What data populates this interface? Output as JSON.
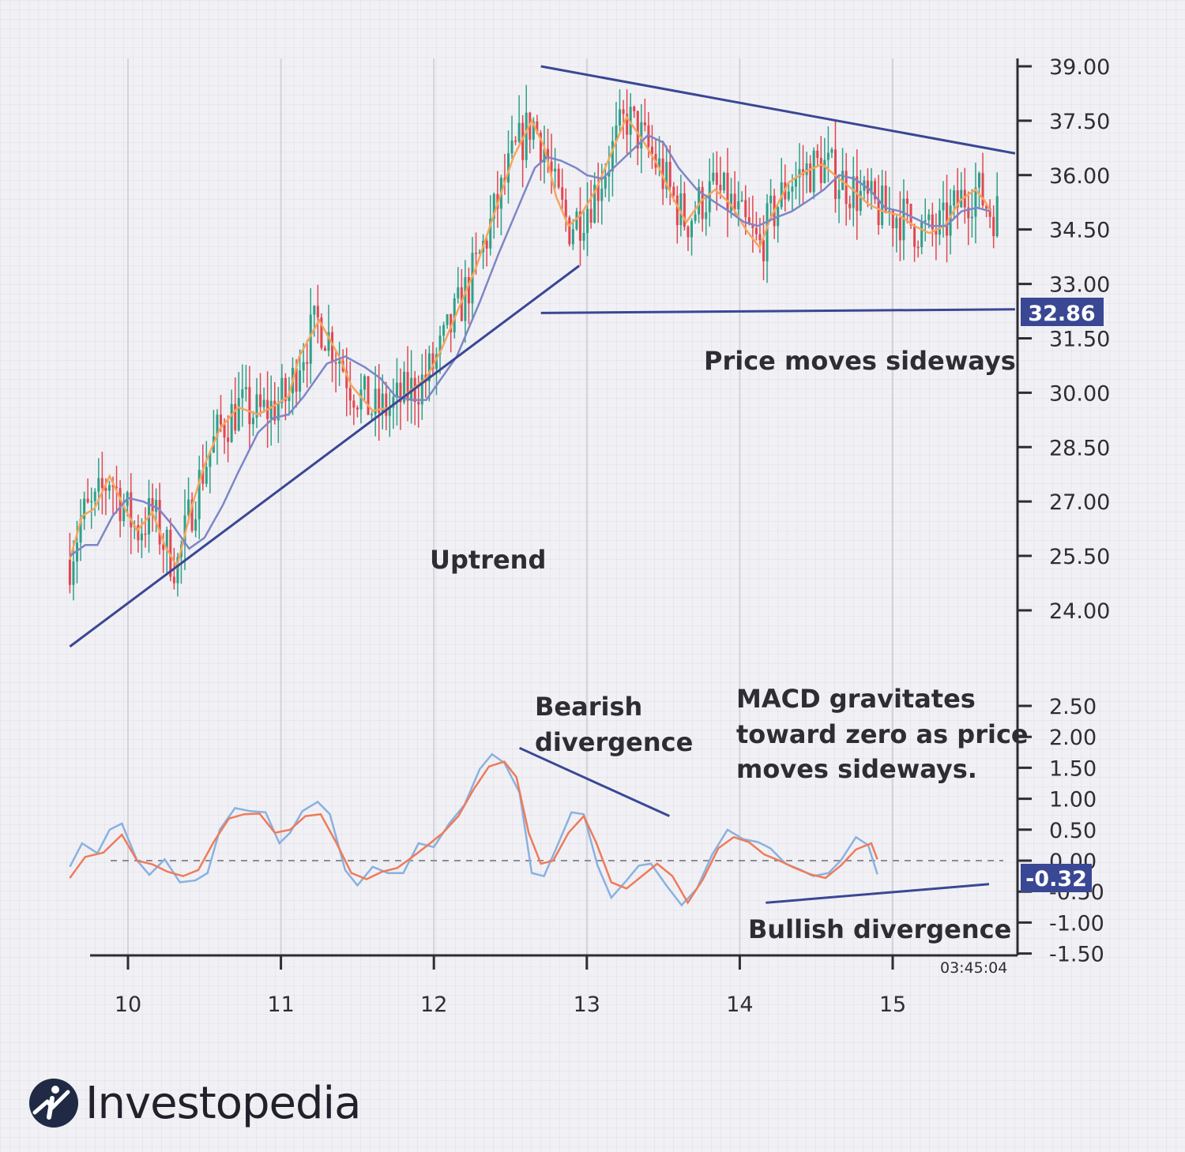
{
  "chart_data": [
    {
      "type": "candlestick",
      "panel": "price",
      "y_ticks": [
        "39.00",
        "37.50",
        "36.00",
        "34.50",
        "33.00",
        "31.50",
        "30.00",
        "28.50",
        "27.00",
        "25.50",
        "24.00"
      ],
      "ylim": [
        22.5,
        39.2
      ],
      "x_ticks": [
        "10",
        "11",
        "12",
        "13",
        "14",
        "15"
      ],
      "xlim": [
        9.25,
        15.8
      ],
      "current_price_label": "32.86",
      "series": [
        {
          "name": "",
          "style": "candles",
          "up_color": "#2fa087",
          "down_color": "#e2474f"
        },
        {
          "name": "",
          "style": "line",
          "color": "#f5a55e",
          "values": [
            [
              9.62,
              25.4
            ],
            [
              9.7,
              26.6
            ],
            [
              9.78,
              26.8
            ],
            [
              9.88,
              27.7
            ],
            [
              9.98,
              26.8
            ],
            [
              10.06,
              26.2
            ],
            [
              10.16,
              26.7
            ],
            [
              10.24,
              25.8
            ],
            [
              10.32,
              25.2
            ],
            [
              10.42,
              26.9
            ],
            [
              10.5,
              28.0
            ],
            [
              10.6,
              29.0
            ],
            [
              10.72,
              29.6
            ],
            [
              10.85,
              29.4
            ],
            [
              10.94,
              29.6
            ],
            [
              11.05,
              29.9
            ],
            [
              11.12,
              31.0
            ],
            [
              11.25,
              32.0
            ],
            [
              11.38,
              31.0
            ],
            [
              11.46,
              30.2
            ],
            [
              11.6,
              29.5
            ],
            [
              11.72,
              29.6
            ],
            [
              11.83,
              30.0
            ],
            [
              11.95,
              30.4
            ],
            [
              12.05,
              31.2
            ],
            [
              12.15,
              32.2
            ],
            [
              12.28,
              33.5
            ],
            [
              12.4,
              35.0
            ],
            [
              12.52,
              36.5
            ],
            [
              12.64,
              37.5
            ],
            [
              12.72,
              36.8
            ],
            [
              12.8,
              35.4
            ],
            [
              12.88,
              34.6
            ],
            [
              12.96,
              34.9
            ],
            [
              13.06,
              35.6
            ],
            [
              13.16,
              36.6
            ],
            [
              13.26,
              37.6
            ],
            [
              13.36,
              37.0
            ],
            [
              13.46,
              36.3
            ],
            [
              13.56,
              35.4
            ],
            [
              13.65,
              34.7
            ],
            [
              13.75,
              35.3
            ],
            [
              13.84,
              35.6
            ],
            [
              13.94,
              35.2
            ],
            [
              14.04,
              34.5
            ],
            [
              14.13,
              34.0
            ],
            [
              14.2,
              34.8
            ],
            [
              14.32,
              35.8
            ],
            [
              14.43,
              36.1
            ],
            [
              14.54,
              36.3
            ],
            [
              14.65,
              35.9
            ],
            [
              14.74,
              35.6
            ],
            [
              14.84,
              35.2
            ],
            [
              14.94,
              35.0
            ],
            [
              15.04,
              34.9
            ],
            [
              15.14,
              34.6
            ],
            [
              15.24,
              34.4
            ],
            [
              15.34,
              34.6
            ],
            [
              15.44,
              35.3
            ],
            [
              15.54,
              35.6
            ],
            [
              15.6,
              35.3
            ],
            [
              15.64,
              35.0
            ]
          ]
        },
        {
          "name": "",
          "style": "line",
          "color": "#7d86c6",
          "values": [
            [
              9.62,
              25.5
            ],
            [
              9.72,
              25.8
            ],
            [
              9.8,
              25.8
            ],
            [
              9.9,
              26.6
            ],
            [
              10.0,
              27.1
            ],
            [
              10.1,
              27.0
            ],
            [
              10.2,
              26.8
            ],
            [
              10.3,
              26.3
            ],
            [
              10.4,
              25.7
            ],
            [
              10.5,
              26.0
            ],
            [
              10.62,
              26.9
            ],
            [
              10.72,
              27.8
            ],
            [
              10.85,
              28.9
            ],
            [
              10.95,
              29.3
            ],
            [
              11.05,
              29.4
            ],
            [
              11.15,
              29.9
            ],
            [
              11.3,
              30.8
            ],
            [
              11.42,
              31.0
            ],
            [
              11.55,
              30.7
            ],
            [
              11.65,
              30.4
            ],
            [
              11.75,
              29.9
            ],
            [
              11.86,
              29.8
            ],
            [
              11.95,
              29.8
            ],
            [
              12.05,
              30.4
            ],
            [
              12.15,
              31.0
            ],
            [
              12.3,
              32.5
            ],
            [
              12.42,
              33.8
            ],
            [
              12.54,
              35.0
            ],
            [
              12.66,
              36.2
            ],
            [
              12.74,
              36.5
            ],
            [
              12.83,
              36.4
            ],
            [
              12.93,
              36.2
            ],
            [
              13.0,
              36.0
            ],
            [
              13.1,
              35.9
            ],
            [
              13.2,
              36.3
            ],
            [
              13.3,
              36.7
            ],
            [
              13.4,
              37.1
            ],
            [
              13.5,
              36.9
            ],
            [
              13.6,
              36.2
            ],
            [
              13.72,
              35.6
            ],
            [
              13.82,
              35.3
            ],
            [
              13.93,
              35.0
            ],
            [
              14.03,
              34.7
            ],
            [
              14.12,
              34.6
            ],
            [
              14.22,
              34.8
            ],
            [
              14.34,
              35.0
            ],
            [
              14.45,
              35.3
            ],
            [
              14.55,
              35.6
            ],
            [
              14.65,
              36.0
            ],
            [
              14.75,
              35.9
            ],
            [
              14.85,
              35.6
            ],
            [
              14.95,
              35.1
            ],
            [
              15.05,
              35.0
            ],
            [
              15.15,
              34.8
            ],
            [
              15.25,
              34.6
            ],
            [
              15.35,
              34.6
            ],
            [
              15.45,
              35.0
            ],
            [
              15.55,
              35.1
            ],
            [
              15.64,
              35.0
            ]
          ]
        }
      ],
      "trendlines": [
        {
          "from": [
            9.62,
            23.0
          ],
          "to": [
            12.95,
            33.5
          ]
        },
        {
          "from": [
            12.7,
            39.0
          ],
          "to": [
            15.8,
            36.6
          ]
        },
        {
          "from": [
            12.7,
            32.2
          ],
          "to": [
            15.8,
            32.3
          ]
        }
      ],
      "annotations": [
        "Uptrend",
        "Price moves sideways"
      ]
    },
    {
      "type": "line",
      "panel": "macd",
      "y_ticks": [
        "2.50",
        "2.00",
        "1.50",
        "1.00",
        "0.50",
        "0.00",
        "-0.50",
        "-1.00",
        "-1.50"
      ],
      "ylim": [
        -1.5,
        2.5
      ],
      "current_value_label": "-0.32",
      "zero_line": true,
      "series": [
        {
          "name": "",
          "color": "#8ab1e0",
          "values": [
            [
              9.62,
              -0.1
            ],
            [
              9.7,
              0.28
            ],
            [
              9.8,
              0.12
            ],
            [
              9.88,
              0.5
            ],
            [
              9.96,
              0.6
            ],
            [
              10.06,
              0.0
            ],
            [
              10.14,
              -0.23
            ],
            [
              10.24,
              0.02
            ],
            [
              10.34,
              -0.35
            ],
            [
              10.44,
              -0.32
            ],
            [
              10.52,
              -0.2
            ],
            [
              10.6,
              0.5
            ],
            [
              10.7,
              0.85
            ],
            [
              10.8,
              0.8
            ],
            [
              10.9,
              0.78
            ],
            [
              10.99,
              0.28
            ],
            [
              11.06,
              0.45
            ],
            [
              11.14,
              0.8
            ],
            [
              11.24,
              0.95
            ],
            [
              11.32,
              0.75
            ],
            [
              11.42,
              -0.15
            ],
            [
              11.5,
              -0.4
            ],
            [
              11.6,
              -0.1
            ],
            [
              11.7,
              -0.2
            ],
            [
              11.8,
              -0.2
            ],
            [
              11.9,
              0.28
            ],
            [
              12.0,
              0.22
            ],
            [
              12.1,
              0.6
            ],
            [
              12.2,
              0.9
            ],
            [
              12.3,
              1.48
            ],
            [
              12.38,
              1.72
            ],
            [
              12.46,
              1.58
            ],
            [
              12.56,
              1.1
            ],
            [
              12.64,
              -0.2
            ],
            [
              12.72,
              -0.25
            ],
            [
              12.8,
              0.2
            ],
            [
              12.9,
              0.78
            ],
            [
              12.98,
              0.75
            ],
            [
              13.07,
              -0.08
            ],
            [
              13.16,
              -0.6
            ],
            [
              13.26,
              -0.32
            ],
            [
              13.34,
              -0.08
            ],
            [
              13.42,
              -0.05
            ],
            [
              13.52,
              -0.4
            ],
            [
              13.62,
              -0.72
            ],
            [
              13.72,
              -0.45
            ],
            [
              13.82,
              0.1
            ],
            [
              13.92,
              0.5
            ],
            [
              14.02,
              0.35
            ],
            [
              14.12,
              0.3
            ],
            [
              14.2,
              0.2
            ],
            [
              14.3,
              -0.05
            ],
            [
              14.4,
              -0.15
            ],
            [
              14.48,
              -0.25
            ],
            [
              14.58,
              -0.2
            ],
            [
              14.66,
              0.0
            ],
            [
              14.76,
              0.38
            ],
            [
              14.84,
              0.25
            ],
            [
              14.9,
              -0.22
            ]
          ]
        },
        {
          "name": "",
          "color": "#ee7b5b",
          "values": [
            [
              9.62,
              -0.28
            ],
            [
              9.72,
              0.06
            ],
            [
              9.84,
              0.13
            ],
            [
              9.96,
              0.42
            ],
            [
              10.06,
              0.0
            ],
            [
              10.16,
              -0.06
            ],
            [
              10.26,
              -0.18
            ],
            [
              10.36,
              -0.25
            ],
            [
              10.46,
              -0.15
            ],
            [
              10.56,
              0.3
            ],
            [
              10.66,
              0.68
            ],
            [
              10.76,
              0.75
            ],
            [
              10.86,
              0.76
            ],
            [
              10.96,
              0.45
            ],
            [
              11.06,
              0.5
            ],
            [
              11.16,
              0.72
            ],
            [
              11.26,
              0.75
            ],
            [
              11.36,
              0.3
            ],
            [
              11.46,
              -0.2
            ],
            [
              11.56,
              -0.3
            ],
            [
              11.66,
              -0.18
            ],
            [
              11.76,
              -0.12
            ],
            [
              11.86,
              0.06
            ],
            [
              11.96,
              0.25
            ],
            [
              12.06,
              0.45
            ],
            [
              12.16,
              0.72
            ],
            [
              12.26,
              1.15
            ],
            [
              12.36,
              1.52
            ],
            [
              12.46,
              1.6
            ],
            [
              12.54,
              1.35
            ],
            [
              12.62,
              0.45
            ],
            [
              12.7,
              -0.05
            ],
            [
              12.78,
              0.0
            ],
            [
              12.88,
              0.45
            ],
            [
              12.98,
              0.72
            ],
            [
              13.06,
              0.3
            ],
            [
              13.16,
              -0.35
            ],
            [
              13.26,
              -0.45
            ],
            [
              13.36,
              -0.25
            ],
            [
              13.46,
              -0.05
            ],
            [
              13.56,
              -0.25
            ],
            [
              13.66,
              -0.68
            ],
            [
              13.76,
              -0.3
            ],
            [
              13.86,
              0.2
            ],
            [
              13.96,
              0.38
            ],
            [
              14.06,
              0.3
            ],
            [
              14.16,
              0.1
            ],
            [
              14.26,
              0.0
            ],
            [
              14.36,
              -0.12
            ],
            [
              14.46,
              -0.22
            ],
            [
              14.56,
              -0.28
            ],
            [
              14.66,
              -0.08
            ],
            [
              14.76,
              0.18
            ],
            [
              14.86,
              0.28
            ],
            [
              14.9,
              0.02
            ]
          ]
        }
      ],
      "trendlines": [
        {
          "label": "Bearish divergence",
          "from": [
            12.56,
            1.82
          ],
          "to": [
            13.54,
            0.72
          ]
        },
        {
          "label": "Bullish divergence",
          "from": [
            14.17,
            -0.68
          ],
          "to": [
            15.63,
            -0.38
          ]
        }
      ],
      "annotations": [
        "Bearish divergence",
        "MACD gravitates toward zero as price moves sideways.",
        "Bullish divergence"
      ]
    }
  ],
  "timestamp": "03:45:04",
  "brand": {
    "name": "Investopedia",
    "logo_icon": "investopedia-logo-icon"
  },
  "colors": {
    "accent": "#3a4794",
    "up": "#2fa087",
    "down": "#e2474f"
  },
  "labels": {
    "uptrend": "Uptrend",
    "sideways": "Price moves sideways",
    "bearish_1": "Bearish",
    "bearish_2": "divergence",
    "macd_1": "MACD gravitates",
    "macd_2": "toward zero as price",
    "macd_3": "moves sideways.",
    "bullish": "Bullish divergence"
  }
}
